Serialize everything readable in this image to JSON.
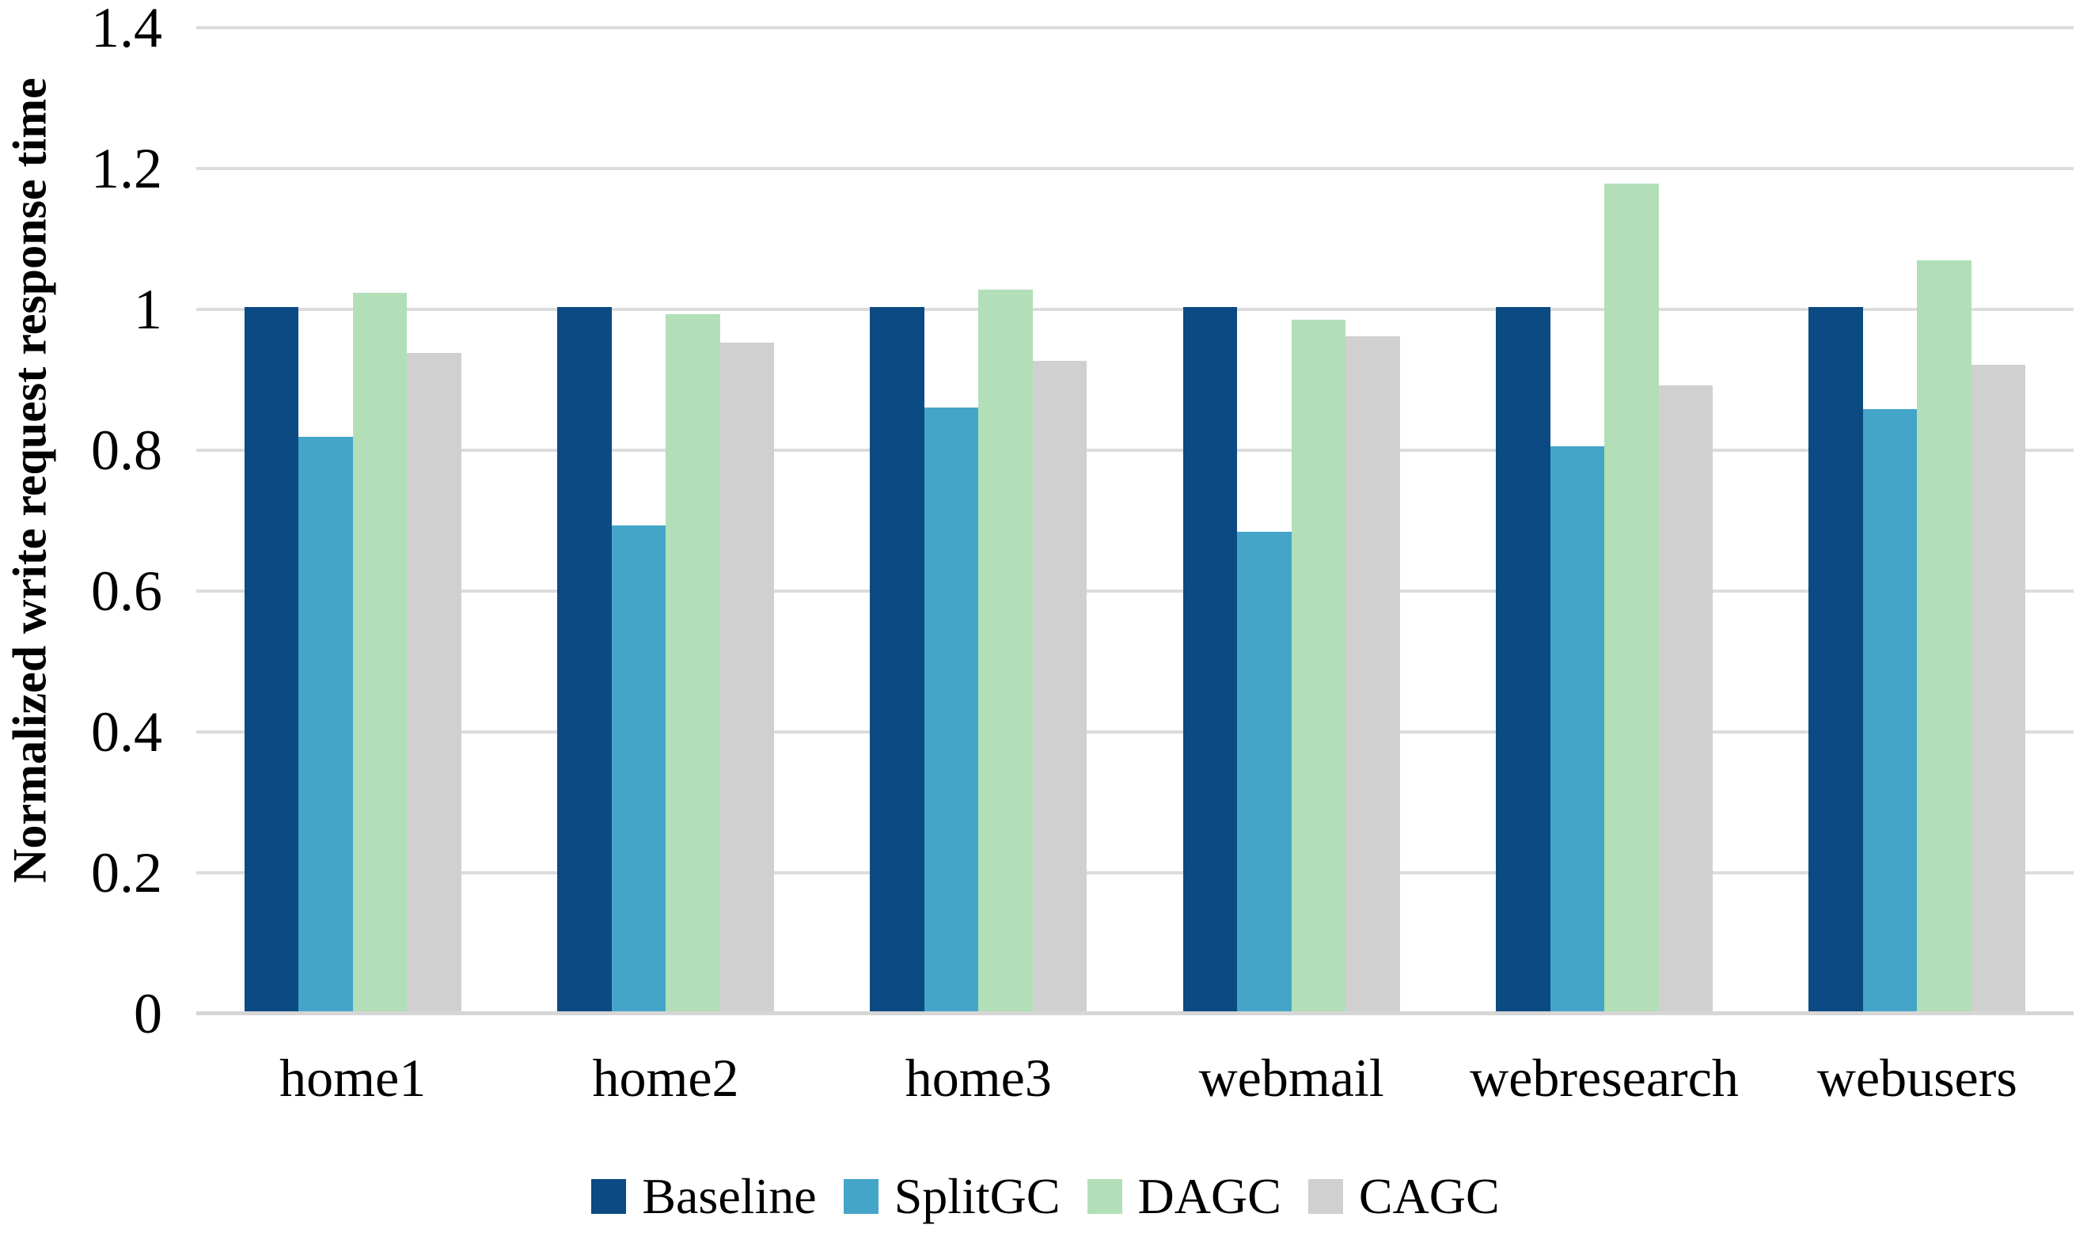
{
  "chart_data": {
    "type": "bar",
    "title": "",
    "xlabel": "",
    "ylabel": "Normalized write request response time",
    "categories": [
      "home1",
      "home2",
      "home3",
      "webmail",
      "webresearch",
      "webusers"
    ],
    "series": [
      {
        "name": "Baseline",
        "color": "#0B4A82",
        "values": [
          1.0,
          1.0,
          1.0,
          1.0,
          1.0,
          1.0
        ]
      },
      {
        "name": "SplitGC",
        "color": "#44A5C9",
        "values": [
          0.816,
          0.69,
          0.857,
          0.681,
          0.802,
          0.855
        ]
      },
      {
        "name": "DAGC",
        "color": "#B2DFB8",
        "values": [
          1.02,
          0.99,
          1.025,
          0.982,
          1.175,
          1.066
        ]
      },
      {
        "name": "CAGC",
        "color": "#D1D0D0",
        "values": [
          0.935,
          0.949,
          0.924,
          0.959,
          0.889,
          0.918
        ]
      }
    ],
    "ylim": [
      0,
      1.4
    ],
    "yticks": [
      0,
      0.2,
      0.4,
      0.6,
      0.8,
      1,
      1.2,
      1.4
    ],
    "grid": true,
    "legend_position": "bottom"
  },
  "colors": {
    "background": "#FFFFFF",
    "gridline": "#DCDCDC",
    "axis_line": "#D6D6D6",
    "text": "#000000"
  }
}
